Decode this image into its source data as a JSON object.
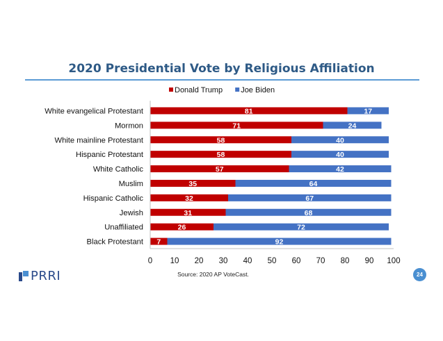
{
  "slide": {
    "source": "Source: 2020 AP VoteCast.",
    "page_number": "24",
    "logo_text": "PRRI"
  },
  "colors": {
    "trump": "#c00000",
    "biden": "#4472c4",
    "title": "#2e5a86"
  },
  "chart_data": {
    "type": "bar",
    "orientation": "horizontal",
    "stacked": true,
    "title": "2020 Presidential Vote by Religious Affiliation",
    "categories": [
      "White evangelical Protestant",
      "Mormon",
      "White mainline Protestant",
      "Hispanic Protestant",
      "White Catholic",
      "Muslim",
      "Hispanic Catholic",
      "Jewish",
      "Unaffiliated",
      "Black Protestant"
    ],
    "series": [
      {
        "name": "Donald Trump",
        "values": [
          81,
          71,
          58,
          58,
          57,
          35,
          32,
          31,
          26,
          7
        ]
      },
      {
        "name": "Joe Biden",
        "values": [
          17,
          24,
          40,
          40,
          42,
          64,
          67,
          68,
          72,
          92
        ]
      }
    ],
    "xlim": [
      0,
      100
    ],
    "xticks": [
      0,
      10,
      20,
      30,
      40,
      50,
      60,
      70,
      80,
      90,
      100
    ],
    "grid": false,
    "legend_position": "top"
  }
}
